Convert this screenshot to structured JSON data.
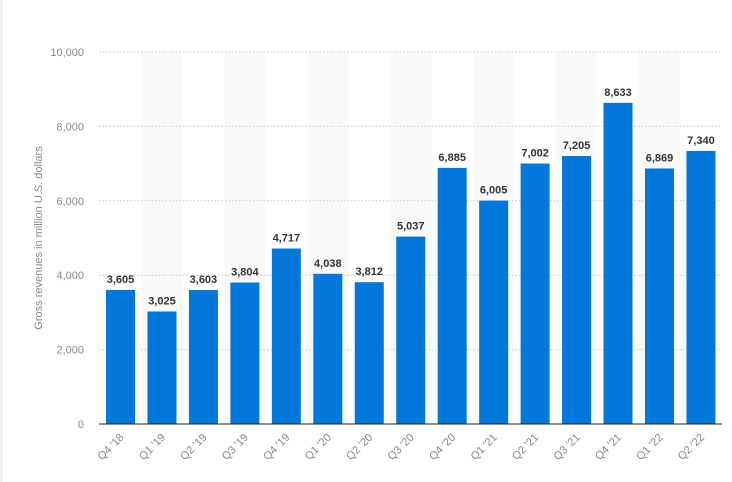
{
  "chart_data": {
    "type": "bar",
    "title": "",
    "xlabel": "",
    "ylabel": "Gross revenues in million U.S. dollars",
    "ylim": [
      0,
      10000
    ],
    "yticks": [
      0,
      2000,
      4000,
      6000,
      8000,
      10000
    ],
    "ytick_labels": [
      "0",
      "2,000",
      "4,000",
      "6,000",
      "8,000",
      "10,000"
    ],
    "grid": true,
    "categories": [
      "Q4 '18",
      "Q1 '19",
      "Q2 '19",
      "Q3 '19",
      "Q4 '19",
      "Q1 '20",
      "Q2 '20",
      "Q3 '20",
      "Q4 '20",
      "Q1 '21",
      "Q2 '21",
      "Q3 '21",
      "Q4 '21",
      "Q1 '22",
      "Q2 '22"
    ],
    "values": [
      3605,
      3025,
      3603,
      3804,
      4717,
      4038,
      3812,
      5037,
      6885,
      6005,
      7002,
      7205,
      8633,
      6869,
      7340
    ],
    "value_labels": [
      "3,605",
      "3,025",
      "3,603",
      "3,804",
      "4,717",
      "4,038",
      "3,812",
      "5,037",
      "6,885",
      "6,005",
      "7,002",
      "7,205",
      "8,633",
      "6,869",
      "7,340"
    ],
    "colors": {
      "bar": "#0077d9",
      "band": "#f9f9f9",
      "grid": "#c8c8c8",
      "label": "#333333",
      "tick": "#888888"
    }
  }
}
